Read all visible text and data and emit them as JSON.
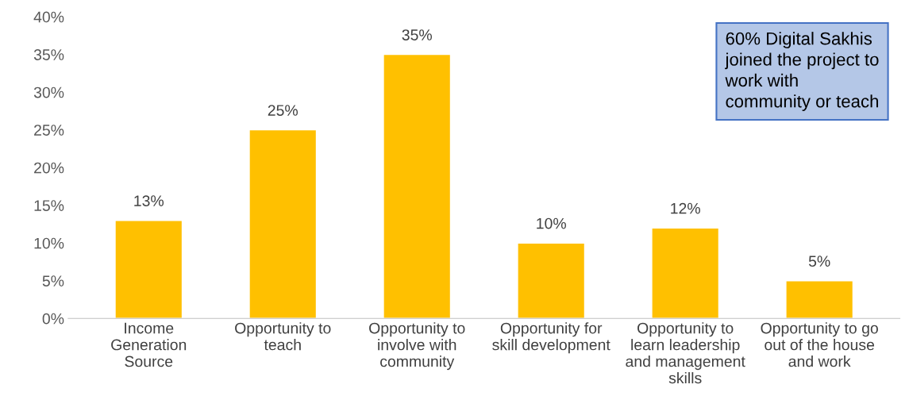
{
  "chart_data": {
    "type": "bar",
    "categories": [
      "Income\nGeneration\nSource",
      "Opportunity to\nteach",
      "Opportunity to\ninvolve with\ncommunity",
      "Opportunity for\nskill development",
      "Opportunity to\nlearn leadership\nand management\nskills",
      "Opportunity to go\nout of the house\nand work"
    ],
    "values": [
      13,
      25,
      35,
      10,
      12,
      5
    ],
    "value_labels": [
      "13%",
      "25%",
      "35%",
      "10%",
      "12%",
      "5%"
    ],
    "color": "#ffc000",
    "ylim": [
      0,
      40
    ],
    "yticks": [
      {
        "value": 0,
        "label": "0%"
      },
      {
        "value": 5,
        "label": "5%"
      },
      {
        "value": 10,
        "label": "10%"
      },
      {
        "value": 15,
        "label": "15%"
      },
      {
        "value": 20,
        "label": "20%"
      },
      {
        "value": 25,
        "label": "25%"
      },
      {
        "value": 30,
        "label": "30%"
      },
      {
        "value": 35,
        "label": "35%"
      },
      {
        "value": 40,
        "label": "40%"
      }
    ],
    "annotations": [
      "60% Digital Sakhis\njoined the project to\nwork with\ncommunity or teach"
    ],
    "grid": false,
    "legend": false
  }
}
